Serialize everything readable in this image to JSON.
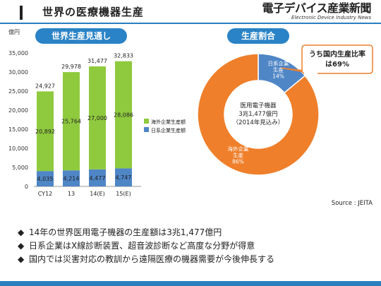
{
  "header": {
    "title": "世界の医療機器生産",
    "brand_main": "電子デバイス産業新聞",
    "brand_sub": "Electronic Device Industry News"
  },
  "left_panel": {
    "pill_label": "世界生産見通し"
  },
  "right_panel": {
    "pill_label": "生産割合",
    "callout": [
      "うち国内生産比率",
      "は69%"
    ],
    "center_label": [
      "医用電子機器",
      "3兆1,477億円",
      "（2014年見込み）"
    ]
  },
  "source": "Source : JEITA",
  "bullets": [
    "14年の世界医用電子機器の生産額は3兆1,477億円",
    "日系企業はX線診断装置、超音波診断など高度な分野が得意",
    "国内では災害対応の教訓から遠隔医療の機器需要が今後伸長する"
  ],
  "bullet_marker": "◆",
  "chart_data": [
    {
      "type": "bar",
      "stacked": true,
      "ylabel": "億円",
      "ylim": [
        0,
        35000
      ],
      "yticks": [
        "0",
        "5,000",
        "10,000",
        "15,000",
        "20,000",
        "25,000",
        "30,000",
        "35,000"
      ],
      "categories": [
        "CY12",
        "13",
        "14(E)",
        "15(E)"
      ],
      "totals": [
        24927,
        29978,
        31477,
        32833
      ],
      "total_labels": [
        "24,927",
        "29,978",
        "31,477",
        "32,833"
      ],
      "series": [
        {
          "name": "日系企業生産額",
          "values": [
            4035,
            4214,
            4477,
            4747
          ],
          "labels": [
            "4,035",
            "4,214",
            "4,477",
            "4,747"
          ],
          "color": "#4f86c6"
        },
        {
          "name": "海外企業生産額",
          "values": [
            20892,
            25764,
            27000,
            28086
          ],
          "labels": [
            "20,892",
            "25,764",
            "27,000",
            "28,086"
          ],
          "color": "#8fca3e"
        }
      ],
      "legend_position": "right",
      "grid": false
    },
    {
      "type": "pie",
      "donut": true,
      "slices": [
        {
          "label": [
            "日系企業",
            "生産",
            "14%"
          ],
          "value": 14,
          "color": "#4f86c6"
        },
        {
          "label": [
            "海外企業",
            "生産",
            "86%"
          ],
          "value": 86,
          "color": "#ef7f2b"
        }
      ]
    }
  ]
}
